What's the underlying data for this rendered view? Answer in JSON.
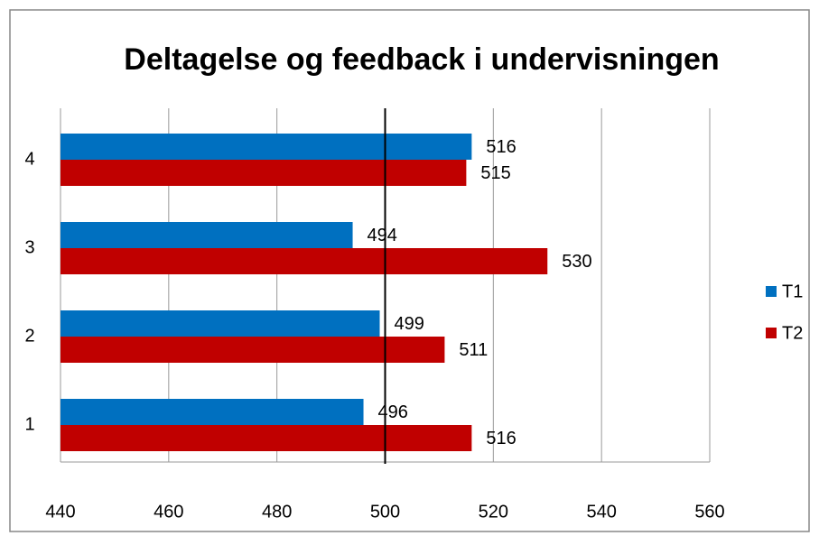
{
  "chart_data": {
    "type": "bar",
    "orientation": "horizontal",
    "title": "Deltagelse og feedback i undervisningen",
    "categories": [
      "1",
      "2",
      "3",
      "4"
    ],
    "series": [
      {
        "name": "T1",
        "color": "#0070c0",
        "values": [
          496,
          499,
          494,
          516
        ]
      },
      {
        "name": "T2",
        "color": "#c00000",
        "values": [
          516,
          511,
          530,
          515
        ]
      }
    ],
    "xlim": [
      440,
      560
    ],
    "xticks": [
      440,
      460,
      480,
      500,
      520,
      540,
      560
    ],
    "grid": true,
    "reference_line": 500,
    "legend": "right"
  }
}
